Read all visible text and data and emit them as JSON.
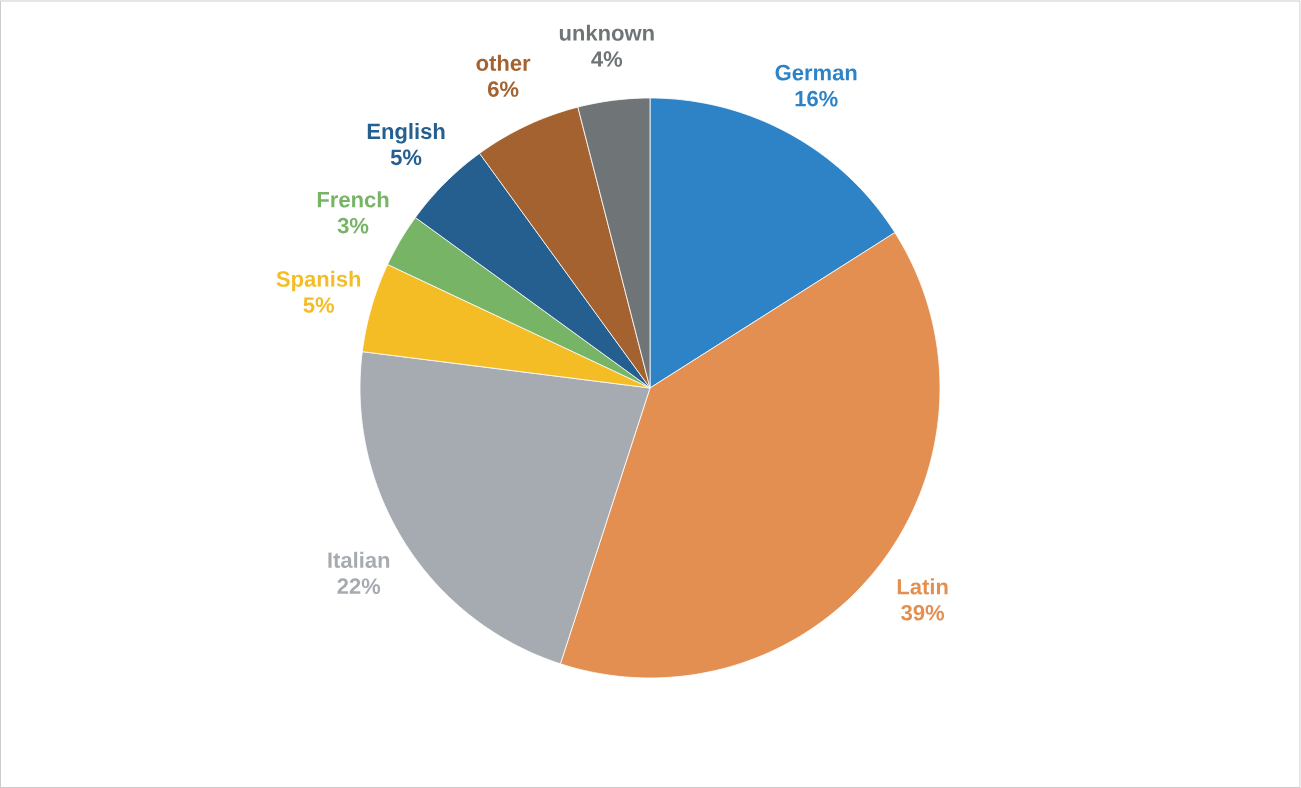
{
  "chart_data": {
    "type": "pie",
    "categories": [
      "German",
      "Latin",
      "Italian",
      "Spanish",
      "French",
      "English",
      "other",
      "unknown"
    ],
    "values": [
      16,
      39,
      22,
      5,
      3,
      5,
      6,
      4
    ],
    "value_labels": [
      "16%",
      "39%",
      "22%",
      "5%",
      "3%",
      "5%",
      "6%",
      "4%"
    ],
    "colors": [
      "#2e83c6",
      "#e38f51",
      "#a6abb2",
      "#f4bc25",
      "#77b466",
      "#255f8f",
      "#a3622f",
      "#6f7477"
    ]
  }
}
